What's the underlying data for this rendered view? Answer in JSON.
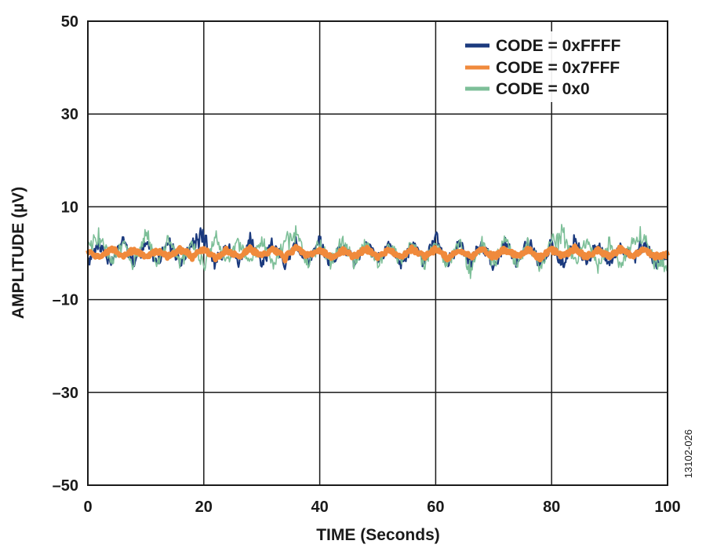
{
  "chart_data": {
    "type": "line",
    "title": "",
    "xlabel": "TIME (Seconds)",
    "ylabel": "AMPLITUDE (µV)",
    "xlim": [
      0,
      100
    ],
    "ylim": [
      -50,
      50
    ],
    "x_ticks": [
      0,
      20,
      40,
      60,
      80,
      100
    ],
    "x_tick_labels": [
      "0",
      "20",
      "40",
      "60",
      "80",
      "100"
    ],
    "y_ticks": [
      50,
      30,
      10,
      -10,
      -30,
      -50
    ],
    "y_tick_labels": [
      "50",
      "30",
      "10",
      "–10",
      "–30",
      "–50"
    ],
    "grid": true,
    "legend_position": "top-right",
    "figure_id": "13102-026",
    "series": [
      {
        "name": "CODE = 0xFFFF",
        "color": "#1b3a7e",
        "x": [
          0,
          2,
          4,
          6,
          8,
          10,
          12,
          14,
          16,
          18,
          20,
          22,
          24,
          26,
          28,
          30,
          32,
          34,
          36,
          38,
          40,
          42,
          44,
          46,
          48,
          50,
          52,
          54,
          56,
          58,
          60,
          62,
          64,
          66,
          68,
          70,
          72,
          74,
          76,
          78,
          80,
          82,
          84,
          86,
          88,
          90,
          92,
          94,
          96,
          98,
          100
        ],
        "y": [
          -2.5,
          3.5,
          -3.5,
          4.0,
          -2.8,
          3.2,
          -3.0,
          4.1,
          -3.6,
          3.0,
          6.5,
          -3.8,
          2.5,
          -2.7,
          3.9,
          -3.2,
          2.9,
          -3.5,
          3.4,
          -2.6,
          3.0,
          -3.4,
          2.7,
          -3.0,
          3.2,
          -2.8,
          2.6,
          -3.6,
          2.9,
          -3.0,
          4.3,
          -3.4,
          3.1,
          -2.6,
          3.5,
          -3.8,
          3.0,
          -2.9,
          3.6,
          -3.2,
          2.8,
          -3.5,
          3.2,
          -2.7,
          3.0,
          -3.0,
          2.4,
          -2.6,
          3.8,
          -2.8,
          -1.5
        ],
        "min": -7.0,
        "max": 6.5
      },
      {
        "name": "CODE = 0x7FFF",
        "color": "#f08a3c",
        "x": [
          0,
          2,
          4,
          6,
          8,
          10,
          12,
          14,
          16,
          18,
          20,
          22,
          24,
          26,
          28,
          30,
          32,
          34,
          36,
          38,
          40,
          42,
          44,
          46,
          48,
          50,
          52,
          54,
          56,
          58,
          60,
          62,
          64,
          66,
          68,
          70,
          72,
          74,
          76,
          78,
          80,
          82,
          84,
          86,
          88,
          90,
          92,
          94,
          96,
          98,
          100
        ],
        "y": [
          0.8,
          -1.2,
          1.5,
          -0.9,
          1.2,
          -1.4,
          0.9,
          -1.1,
          1.6,
          -1.0,
          1.3,
          -1.5,
          1.0,
          -1.2,
          1.4,
          -0.8,
          1.1,
          -1.3,
          1.5,
          -1.0,
          1.2,
          -1.4,
          0.9,
          -1.2,
          1.5,
          -1.1,
          1.0,
          -1.3,
          1.4,
          -0.9,
          1.2,
          -1.5,
          1.0,
          -1.1,
          1.3,
          -1.2,
          1.5,
          -1.0,
          1.1,
          -1.4,
          1.2,
          -0.9,
          1.4,
          -1.3,
          1.0,
          -1.2,
          1.5,
          -1.0,
          1.1,
          -1.4,
          -0.5
        ]
      },
      {
        "name": "CODE = 0x0",
        "color": "#7dbf98",
        "x": [
          0,
          2,
          4,
          6,
          8,
          10,
          12,
          14,
          16,
          18,
          20,
          22,
          24,
          26,
          28,
          30,
          32,
          34,
          36,
          38,
          40,
          42,
          44,
          46,
          48,
          50,
          52,
          54,
          56,
          58,
          60,
          62,
          64,
          66,
          68,
          70,
          72,
          74,
          76,
          78,
          80,
          82,
          84,
          86,
          88,
          90,
          92,
          94,
          96,
          98,
          100
        ],
        "y": [
          1.5,
          5.5,
          -3.0,
          3.5,
          -4.0,
          6.0,
          -3.5,
          4.5,
          -3.2,
          3.0,
          -4.0,
          5.0,
          -3.5,
          3.2,
          -3.0,
          4.8,
          -3.8,
          3.5,
          5.6,
          -4.2,
          3.0,
          -3.5,
          4.5,
          -3.2,
          3.8,
          -4.5,
          3.3,
          -3.0,
          4.2,
          -3.6,
          3.5,
          -4.0,
          4.0,
          -5.5,
          3.1,
          -3.4,
          4.4,
          -3.8,
          3.0,
          -4.2,
          3.6,
          6.0,
          -3.3,
          4.1,
          -3.5,
          3.0,
          -4.0,
          3.5,
          5.0,
          -3.6,
          -4.0
        ],
        "min": -6.0,
        "max": 6.2
      }
    ]
  }
}
